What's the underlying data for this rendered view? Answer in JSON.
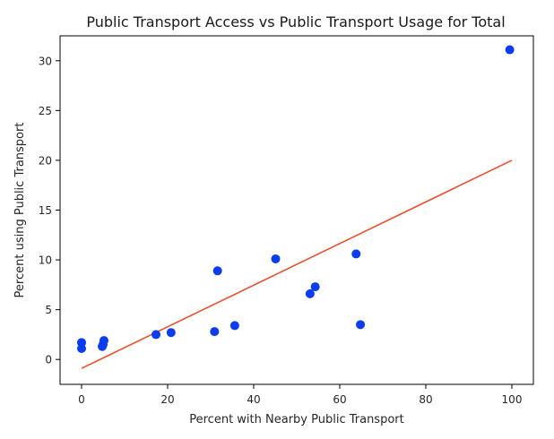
{
  "chart_data": {
    "type": "scatter",
    "title": "Public Transport Access vs Public Transport Usage for Total",
    "xlabel": "Percent with Nearby Public Transport",
    "ylabel": "Percent using Public Transport",
    "xlim": [
      -5,
      105
    ],
    "ylim": [
      -2.5,
      32.5
    ],
    "xticks": [
      0,
      20,
      40,
      60,
      80,
      100
    ],
    "yticks": [
      0,
      5,
      10,
      15,
      20,
      25,
      30
    ],
    "grid": false,
    "point_color": "#0a3cf0",
    "line_color": "#e8502e",
    "points": [
      {
        "x": 0.0,
        "y": 1.7
      },
      {
        "x": 0.0,
        "y": 1.1
      },
      {
        "x": 4.8,
        "y": 1.3
      },
      {
        "x": 5.0,
        "y": 1.5
      },
      {
        "x": 5.2,
        "y": 1.9
      },
      {
        "x": 17.3,
        "y": 2.5
      },
      {
        "x": 20.8,
        "y": 2.7
      },
      {
        "x": 30.9,
        "y": 2.8
      },
      {
        "x": 31.6,
        "y": 8.9
      },
      {
        "x": 35.6,
        "y": 3.4
      },
      {
        "x": 45.1,
        "y": 10.1
      },
      {
        "x": 53.1,
        "y": 6.6
      },
      {
        "x": 54.3,
        "y": 7.3
      },
      {
        "x": 63.8,
        "y": 10.6
      },
      {
        "x": 64.8,
        "y": 3.5
      },
      {
        "x": 99.5,
        "y": 31.1
      }
    ],
    "trend_line": {
      "x": [
        0,
        100
      ],
      "y": [
        -0.9,
        20.0
      ]
    }
  }
}
